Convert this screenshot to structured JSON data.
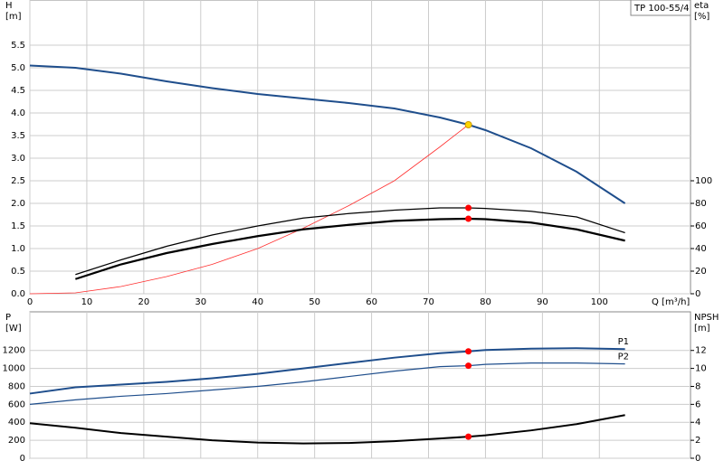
{
  "chart_data": [
    {
      "type": "line",
      "title": "TP 100-55/4",
      "y_label": "H",
      "y_unit": "[m]",
      "y2_label": "eta",
      "y2_unit": "[%]",
      "x_label": "Q [m³/h]",
      "xlim": [
        0,
        116
      ],
      "ylim": [
        0,
        6.5
      ],
      "y2lim": [
        0,
        260
      ],
      "xticks": [
        0,
        10,
        20,
        30,
        40,
        50,
        60,
        70,
        80,
        90,
        100
      ],
      "yticks": [
        {
          "value": 0,
          "label": "0.0"
        },
        0.5,
        {
          "value": 1,
          "label": "1.0"
        },
        1.5,
        {
          "value": 2,
          "label": "2.0"
        },
        2.5,
        {
          "value": 3,
          "label": "3.0"
        },
        3.5,
        {
          "value": 4,
          "label": "4.0"
        },
        4.5,
        {
          "value": 5,
          "label": "5.0"
        },
        5.5
      ],
      "y2ticks": [
        0,
        20,
        40,
        60,
        80,
        100
      ],
      "grid": true,
      "x": [
        0,
        8,
        16,
        24,
        32,
        40,
        48,
        56,
        64,
        72,
        77,
        80,
        88,
        96,
        104.5
      ],
      "series": [
        {
          "color": "#1f4e8c",
          "line_width": 2,
          "values": [
            5.05,
            5.0,
            4.87,
            4.7,
            4.55,
            4.42,
            4.32,
            4.22,
            4.1,
            3.9,
            3.74,
            3.62,
            3.22,
            2.7,
            2.0
          ]
        },
        {
          "color": "#ff3030",
          "line_width": 0.8,
          "values": [
            0,
            0.02,
            0.16,
            0.38,
            0.65,
            1.0,
            1.45,
            1.95,
            2.5,
            3.25,
            3.74,
            null,
            null,
            null,
            null
          ]
        },
        {
          "color": "#000000",
          "line_width": 1.2,
          "axis": "y2",
          "values": [
            null,
            17,
            30,
            42,
            52,
            60,
            67,
            71,
            74,
            76,
            76,
            75.5,
            73,
            68,
            54
          ]
        },
        {
          "color": "#000000",
          "line_width": 2.2,
          "axis": "y2",
          "values": [
            null,
            13,
            26,
            36,
            44,
            51,
            57,
            61,
            64.5,
            66,
            66.4,
            66,
            63,
            57,
            47
          ]
        }
      ],
      "points": [
        {
          "x": 77,
          "y": 3.74,
          "color": "#ffd700"
        },
        {
          "x": 77,
          "y": 76,
          "axis": "y2",
          "color": "#ff0000"
        },
        {
          "x": 77,
          "y": 66.4,
          "axis": "y2",
          "color": "#ff0000"
        }
      ]
    },
    {
      "type": "line",
      "y_label": "P",
      "y_unit": "[W]",
      "y2_label": "NPSH",
      "y2_unit": "[m]",
      "xlim": [
        0,
        116
      ],
      "ylim": [
        0,
        1630
      ],
      "y2lim": [
        0,
        16.3
      ],
      "xticks": [
        0,
        10,
        20,
        30,
        40,
        50,
        60,
        70,
        80,
        90,
        100
      ],
      "yticks": [
        0,
        200,
        400,
        600,
        800,
        1000,
        1200
      ],
      "y2ticks": [
        0,
        2,
        4,
        6,
        8,
        10,
        12
      ],
      "grid": true,
      "x": [
        0,
        8,
        16,
        24,
        32,
        40,
        48,
        56,
        64,
        72,
        77,
        80,
        88,
        96,
        104.5
      ],
      "series": [
        {
          "name": "P1",
          "color": "#1f4e8c",
          "line_width": 2,
          "values": [
            720,
            790,
            820,
            850,
            890,
            940,
            1000,
            1060,
            1120,
            1170,
            1190,
            1205,
            1220,
            1225,
            1215
          ]
        },
        {
          "name": "P2",
          "color": "#1f4e8c",
          "line_width": 1.2,
          "values": [
            600,
            650,
            690,
            720,
            760,
            800,
            850,
            910,
            970,
            1020,
            1030,
            1045,
            1060,
            1060,
            1050
          ]
        },
        {
          "color": "#000000",
          "line_width": 2,
          "axis": "y2",
          "values": [
            3.9,
            3.4,
            2.8,
            2.4,
            2.0,
            1.75,
            1.65,
            1.7,
            1.9,
            2.2,
            2.4,
            2.55,
            3.1,
            3.8,
            4.8
          ]
        }
      ],
      "points": [
        {
          "x": 77,
          "y": 1190,
          "color": "#ff0000"
        },
        {
          "x": 77,
          "y": 1030,
          "color": "#ff0000"
        },
        {
          "x": 77,
          "y": 2.4,
          "axis": "y2",
          "color": "#ff0000"
        }
      ]
    }
  ]
}
